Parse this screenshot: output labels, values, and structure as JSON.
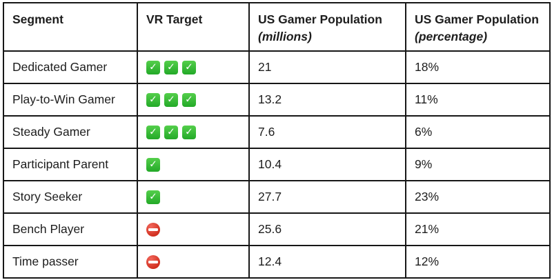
{
  "table": {
    "columns": [
      {
        "label": "Segment",
        "sublabel": ""
      },
      {
        "label": "VR Target",
        "sublabel": ""
      },
      {
        "label": "US Gamer Population",
        "sublabel": "(millions)"
      },
      {
        "label": "US Gamer Population",
        "sublabel": "(percentage)"
      }
    ],
    "rows": [
      {
        "segment": "Dedicated Gamer",
        "vr_target_icon": "check",
        "vr_target_count": 3,
        "millions": "21",
        "percentage": "18%"
      },
      {
        "segment": "Play-to-Win Gamer",
        "vr_target_icon": "check",
        "vr_target_count": 3,
        "millions": "13.2",
        "percentage": "11%"
      },
      {
        "segment": "Steady Gamer",
        "vr_target_icon": "check",
        "vr_target_count": 3,
        "millions": "7.6",
        "percentage": "6%"
      },
      {
        "segment": "Participant Parent",
        "vr_target_icon": "check",
        "vr_target_count": 1,
        "millions": "10.4",
        "percentage": "9%"
      },
      {
        "segment": "Story Seeker",
        "vr_target_icon": "check",
        "vr_target_count": 1,
        "millions": "27.7",
        "percentage": "23%"
      },
      {
        "segment": "Bench Player",
        "vr_target_icon": "no-entry",
        "vr_target_count": 1,
        "millions": "25.6",
        "percentage": "21%"
      },
      {
        "segment": "Time passer",
        "vr_target_icon": "no-entry",
        "vr_target_count": 1,
        "millions": "12.4",
        "percentage": "12%"
      }
    ]
  },
  "colors": {
    "border": "#161616",
    "text": "#1d1d1d",
    "background": "#ffffff",
    "check_green_top": "#54cf4b",
    "check_green_bottom": "#23a928",
    "no_entry_red": "#cf2d1d"
  },
  "chart_data": {
    "type": "table",
    "title": "",
    "columns": [
      "Segment",
      "VR Target",
      "US Gamer Population (millions)",
      "US Gamer Population (percentage)"
    ],
    "rows": [
      [
        "Dedicated Gamer",
        "check x3",
        21,
        "18%"
      ],
      [
        "Play-to-Win Gamer",
        "check x3",
        13.2,
        "11%"
      ],
      [
        "Steady Gamer",
        "check x3",
        7.6,
        "6%"
      ],
      [
        "Participant Parent",
        "check x1",
        10.4,
        "9%"
      ],
      [
        "Story Seeker",
        "check x1",
        27.7,
        "23%"
      ],
      [
        "Bench Player",
        "no-entry",
        25.6,
        "21%"
      ],
      [
        "Time passer",
        "no-entry",
        12.4,
        "12%"
      ]
    ]
  }
}
